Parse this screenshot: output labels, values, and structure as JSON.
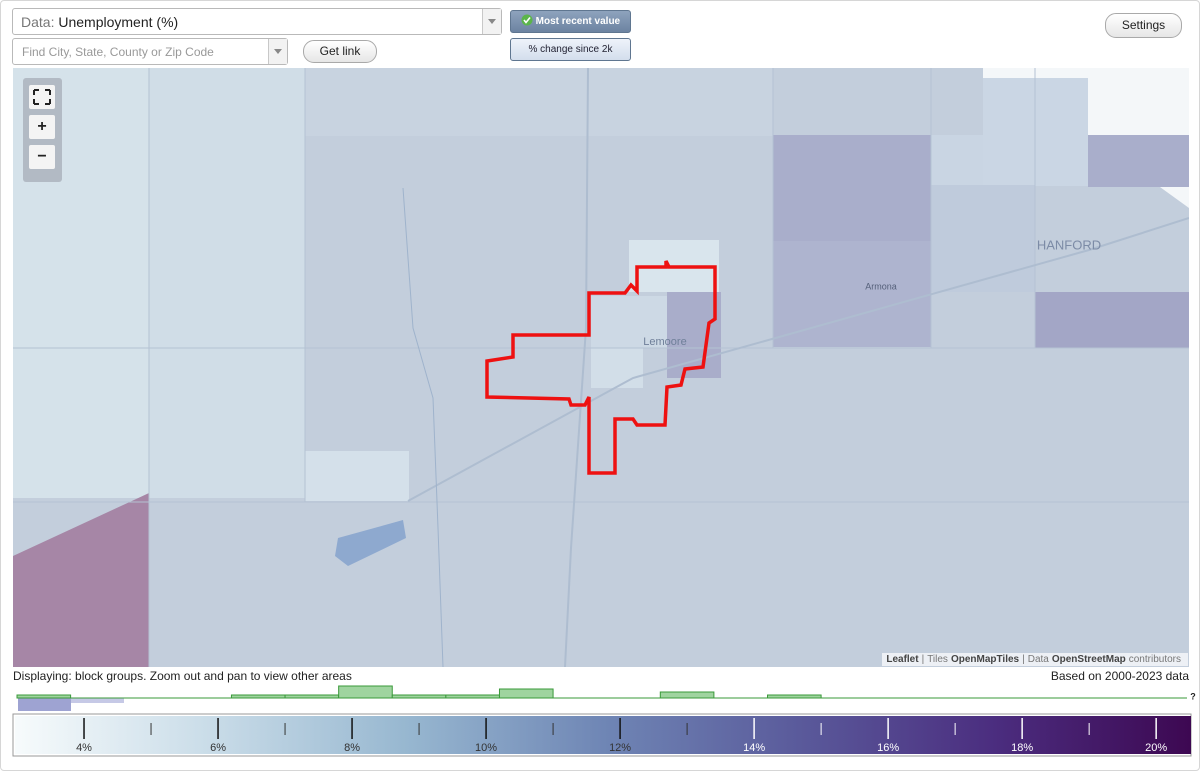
{
  "controls": {
    "data_prefix": "Data:",
    "data_value": "Unemployment (%)",
    "search_placeholder": "Find City, State, County or Zip Code",
    "get_link": "Get link",
    "most_recent": "Most recent value",
    "change": "% change since 2k",
    "settings": "Settings",
    "zoom_in": "+",
    "zoom_out": "−"
  },
  "map": {
    "labels": [
      "HANFORD",
      "Armona",
      "Lemoore"
    ],
    "attribution": [
      {
        "text": "Leaflet",
        "bold": true
      },
      {
        "text": "|",
        "bold": false
      },
      {
        "text": "Tiles",
        "bold": false
      },
      {
        "text": "OpenMapTiles",
        "bold": true
      },
      {
        "text": "|",
        "bold": false
      },
      {
        "text": "Data",
        "bold": false
      },
      {
        "text": "OpenStreetMap",
        "bold": true
      },
      {
        "text": "contributors",
        "bold": false
      }
    ]
  },
  "footer": {
    "displaying": "Displaying: block groups. Zoom out and pan to view other areas",
    "based_on": "Based on 2000-2023 data",
    "unknown": "?"
  },
  "chart_data": {
    "type": "histogram",
    "scale_range": [
      2.97,
      20.52
    ],
    "bins": [
      3.0,
      3.8,
      4.6,
      5.4,
      6.2,
      7.0,
      7.8,
      8.6,
      9.4,
      10.2,
      11.0,
      11.8,
      12.6,
      13.4,
      14.2,
      15.0
    ],
    "values": [
      1,
      0,
      0,
      0,
      1,
      1,
      4,
      1,
      1,
      3,
      0,
      0,
      2,
      0,
      1
    ],
    "color": "#9fd49f",
    "scale_colors": [
      "#f7fbfc",
      "#c9dce8",
      "#97b7d0",
      "#6f86b5",
      "#5a5a9b",
      "#4b2d7f",
      "#3d0852"
    ],
    "xticks": [
      {
        "value": 4,
        "label": "4%"
      },
      {
        "value": 6,
        "label": "6%"
      },
      {
        "value": 8,
        "label": "8%"
      },
      {
        "value": 10,
        "label": "10%"
      },
      {
        "value": 12,
        "label": "12%"
      },
      {
        "value": 14,
        "label": "14%"
      },
      {
        "value": 16,
        "label": "16%"
      },
      {
        "value": 18,
        "label": "18%"
      },
      {
        "value": 20,
        "label": "20%"
      }
    ],
    "minor_xticks": [
      5,
      7,
      9,
      11,
      13,
      15,
      17,
      19
    ]
  }
}
